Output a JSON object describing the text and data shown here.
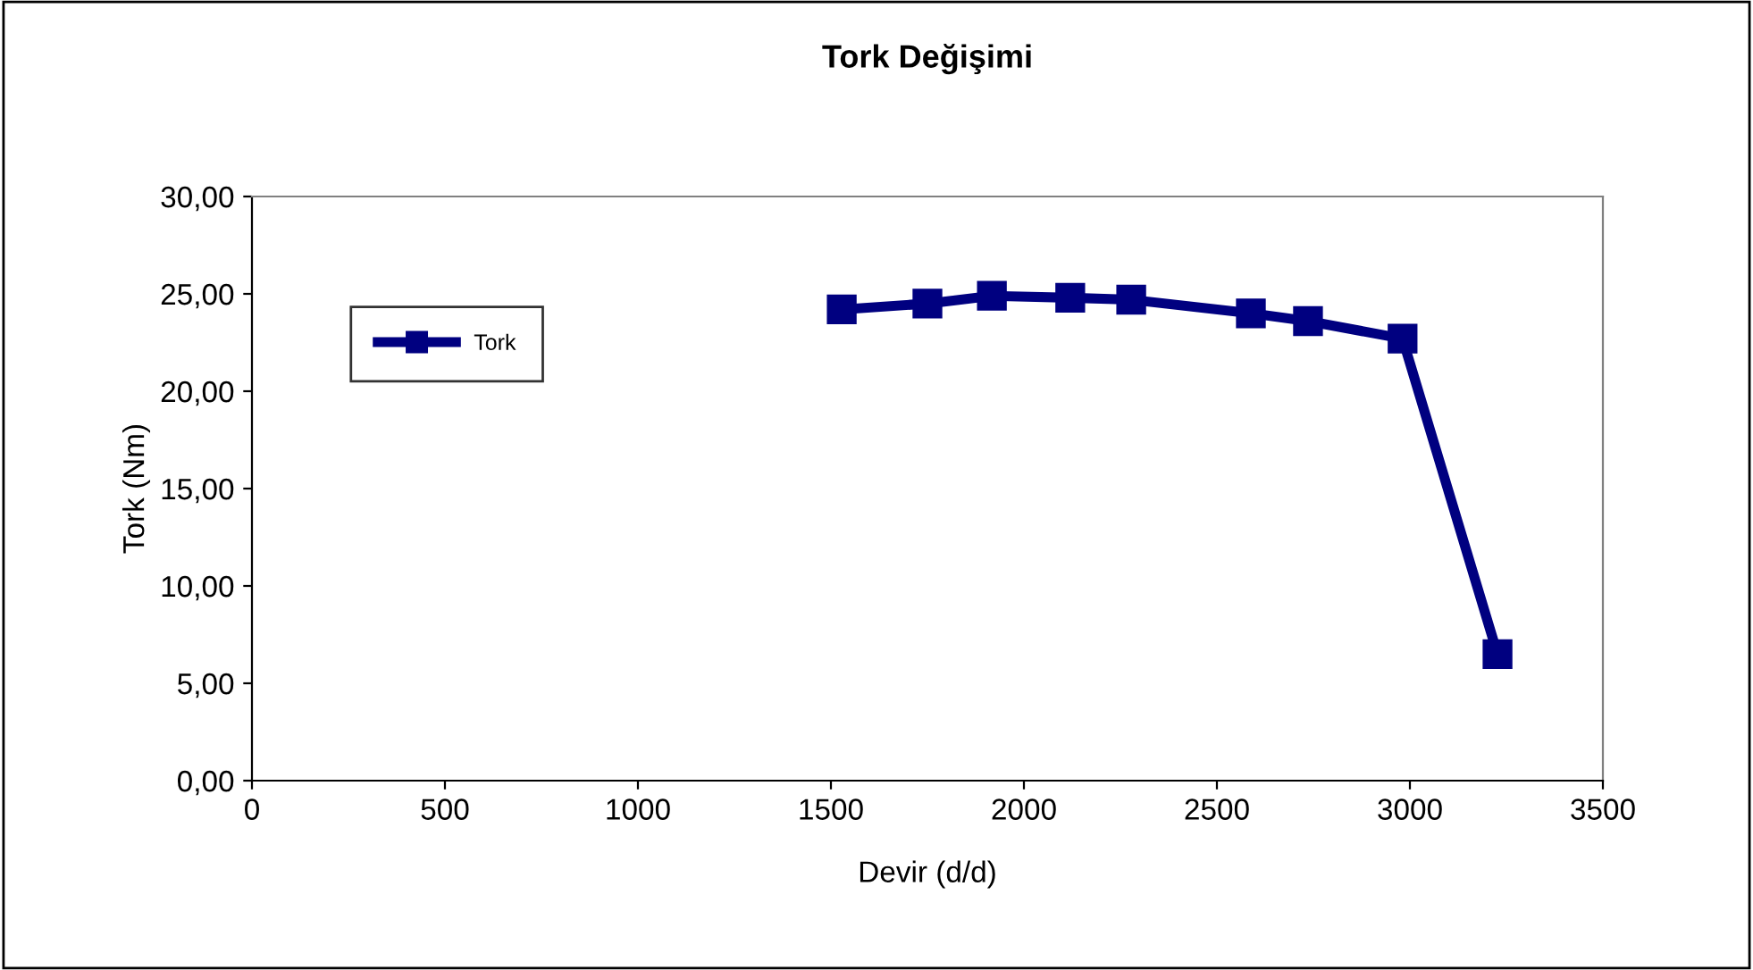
{
  "chart_data": {
    "type": "line",
    "title": "Tork Değişimi",
    "xlabel": "Devir (d/d)",
    "ylabel": "Tork (Nm)",
    "x": [
      1528,
      1750,
      1917,
      2120,
      2278,
      2588,
      2736,
      2981,
      3227
    ],
    "series": [
      {
        "name": "Tork",
        "color": "#000080",
        "values": [
          24.2,
          24.5,
          24.9,
          24.8,
          24.7,
          24.0,
          23.6,
          22.7,
          6.5
        ]
      }
    ],
    "xlim": [
      0,
      3500
    ],
    "xticks": [
      0,
      500,
      1000,
      1500,
      2000,
      2500,
      3000,
      3500
    ],
    "ylim": [
      0,
      30
    ],
    "yticks": [
      {
        "value": 0,
        "label": "0,00"
      },
      {
        "value": 5,
        "label": "5,00"
      },
      {
        "value": 10,
        "label": "10,00"
      },
      {
        "value": 15,
        "label": "15,00"
      },
      {
        "value": 20,
        "label": "20,00"
      },
      {
        "value": 25,
        "label": "25,00"
      },
      {
        "value": 30,
        "label": "30,00"
      }
    ],
    "grid": false,
    "legend": "top left",
    "marker": "square",
    "line_style": "solid"
  }
}
